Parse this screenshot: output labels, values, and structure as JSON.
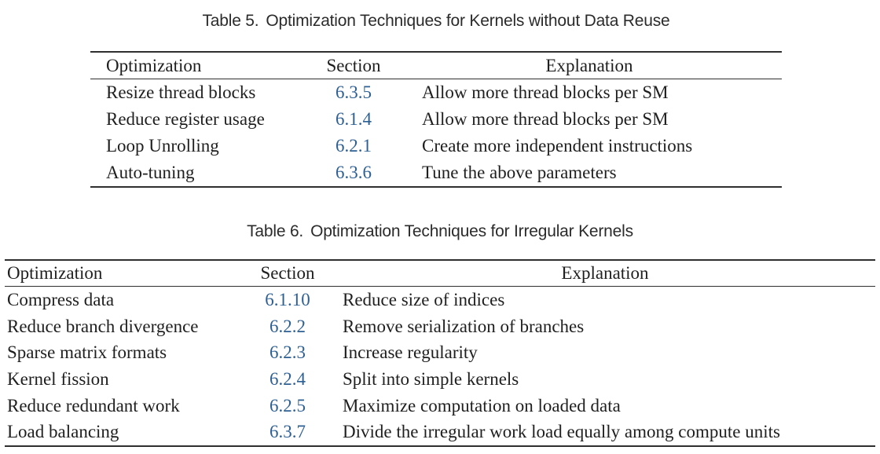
{
  "page": {
    "background": "#ffffff",
    "text_color": "#1f1f1f",
    "link_color": "#2e6094",
    "rule_color": "#2f2f2f"
  },
  "table5": {
    "caption_label": "Table 5.",
    "caption_text": "Optimization Techniques for Kernels without Data Reuse",
    "columns": [
      "Optimization",
      "Section",
      "Explanation"
    ],
    "rows": [
      {
        "optimization": "Resize thread blocks",
        "section": "6.3.5",
        "explanation": "Allow more thread blocks per SM"
      },
      {
        "optimization": "Reduce register usage",
        "section": "6.1.4",
        "explanation": "Allow more thread blocks per SM"
      },
      {
        "optimization": "Loop Unrolling",
        "section": "6.2.1",
        "explanation": "Create more independent instructions"
      },
      {
        "optimization": "Auto-tuning",
        "section": "6.3.6",
        "explanation": "Tune the above parameters"
      }
    ]
  },
  "table6": {
    "caption_label": "Table 6.",
    "caption_text": "Optimization Techniques for Irregular Kernels",
    "columns": [
      "Optimization",
      "Section",
      "Explanation"
    ],
    "rows": [
      {
        "optimization": "Compress data",
        "section": "6.1.10",
        "explanation": "Reduce size of indices"
      },
      {
        "optimization": "Reduce branch divergence",
        "section": "6.2.2",
        "explanation": "Remove serialization of branches"
      },
      {
        "optimization": "Sparse matrix formats",
        "section": "6.2.3",
        "explanation": "Increase regularity"
      },
      {
        "optimization": "Kernel fission",
        "section": "6.2.4",
        "explanation": "Split into simple kernels"
      },
      {
        "optimization": "Reduce redundant work",
        "section": "6.2.5",
        "explanation": "Maximize computation on loaded data"
      },
      {
        "optimization": "Load balancing",
        "section": "6.3.7",
        "explanation": "Divide the irregular work load equally among compute units"
      }
    ]
  }
}
